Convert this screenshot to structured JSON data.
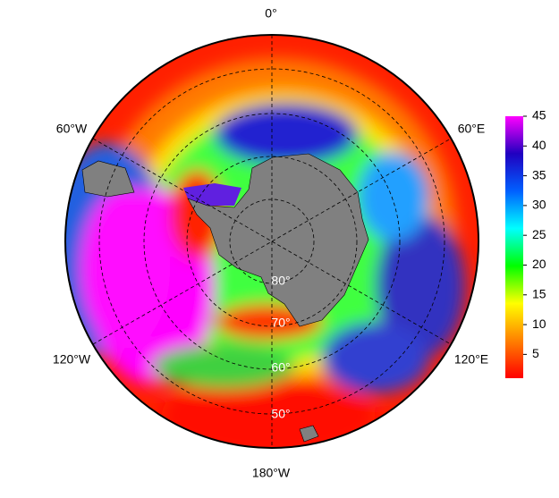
{
  "map": {
    "meridian_labels": [
      "0°",
      "60°W",
      "60°E",
      "120°W",
      "120°E",
      "180°W"
    ],
    "latitude_labels": [
      "80°",
      "70°",
      "60°",
      "50°"
    ]
  },
  "colorbar": {
    "range": [
      1,
      45
    ],
    "ticks": [
      5,
      10,
      15,
      20,
      25,
      30,
      35,
      40,
      45
    ],
    "colors": [
      "#ff0000",
      "#ff8000",
      "#ffff00",
      "#00ff00",
      "#00ffff",
      "#0060ff",
      "#2000c0",
      "#ff00ff"
    ]
  }
}
